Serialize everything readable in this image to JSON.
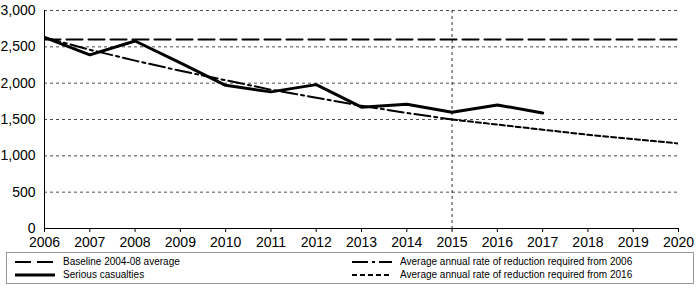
{
  "chart_data": {
    "type": "line",
    "x": [
      2006,
      2007,
      2008,
      2009,
      2010,
      2011,
      2012,
      2013,
      2014,
      2015,
      2016,
      2017,
      2018,
      2019,
      2020
    ],
    "xlim": [
      2006,
      2020
    ],
    "xticks": [
      2006,
      2007,
      2008,
      2009,
      2010,
      2011,
      2012,
      2013,
      2014,
      2015,
      2016,
      2017,
      2018,
      2019,
      2020
    ],
    "ylim": [
      0,
      3000
    ],
    "yticks": [
      0,
      500,
      {
        "value": 1000,
        "label": "1,000"
      },
      {
        "value": 1500,
        "label": "1,500"
      },
      {
        "value": 2000,
        "label": "2,000"
      },
      {
        "value": 2500,
        "label": "2,500"
      },
      {
        "value": 3000,
        "label": "3,000"
      }
    ],
    "grid": true,
    "vline": 2015,
    "legend": "bottom",
    "series": [
      {
        "name": "Baseline 2004-08 average",
        "color": "#000000",
        "line_style": "dashed",
        "values": [
          2600,
          2600,
          2600,
          2600,
          2600,
          2600,
          2600,
          2600,
          2600,
          2600,
          2600,
          2600,
          2600,
          2600,
          2600
        ]
      },
      {
        "name": "Average annual rate of reduction required from 2006",
        "color": "#000000",
        "line_style": "dashdot",
        "values": [
          2630,
          2460,
          2310,
          2170,
          2040,
          1910,
          1800,
          1690,
          1590,
          1500,
          null,
          null,
          null,
          null,
          null
        ]
      },
      {
        "name": "Serious casualties",
        "color": "#000000",
        "line_style": "solid",
        "values": [
          2630,
          2390,
          2580,
          2280,
          1970,
          1880,
          1980,
          1670,
          1710,
          1600,
          1700,
          1590,
          null,
          null,
          null
        ]
      },
      {
        "name": "Average annual rate of reduction required from 2016",
        "color": "#000000",
        "line_style": "dotted",
        "values": [
          null,
          null,
          null,
          null,
          null,
          null,
          null,
          null,
          null,
          1500,
          1430,
          1360,
          1290,
          1230,
          1170
        ]
      }
    ]
  }
}
